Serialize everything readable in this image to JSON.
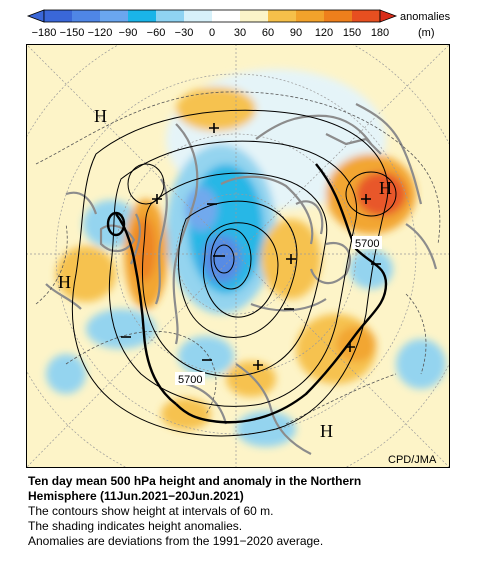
{
  "colorbar": {
    "ticks": [
      "−180",
      "−150",
      "−120",
      "−90",
      "−60",
      "−30",
      "0",
      "30",
      "60",
      "90",
      "120",
      "150",
      "180"
    ],
    "label_line1": "anomalies",
    "label_line2": "(m)",
    "colors": [
      "#3a67d8",
      "#4f86e6",
      "#6aa6ef",
      "#1ab4e8",
      "#8fd3f2",
      "#d7f1fa",
      "#fbf4c8",
      "#f6c04a",
      "#f2a22b",
      "#ee7f1c",
      "#e74f20",
      "#d82c1a"
    ]
  },
  "map": {
    "labels": {
      "h1": "H",
      "h2": "H",
      "h3": "H",
      "h4": "H",
      "contour1": "5700",
      "contour2": "5700",
      "credit": "CPD/JMA"
    },
    "colors": {
      "ocean": "#fdf4c8",
      "land_outline": "#8c8c8c",
      "contour": "#000000",
      "grid": "#9a9a9a"
    }
  },
  "caption": {
    "title_line1": "Ten day mean 500 hPa height and anomaly in the Northern",
    "title_line2": "Hemisphere (11Jun.2021−20Jun.2021)",
    "line3": "The contours show height at intervals of 60 m.",
    "line4": "The shading indicates height anomalies.",
    "line5": "Anomalies are deviations from the 1991−2020 average."
  }
}
